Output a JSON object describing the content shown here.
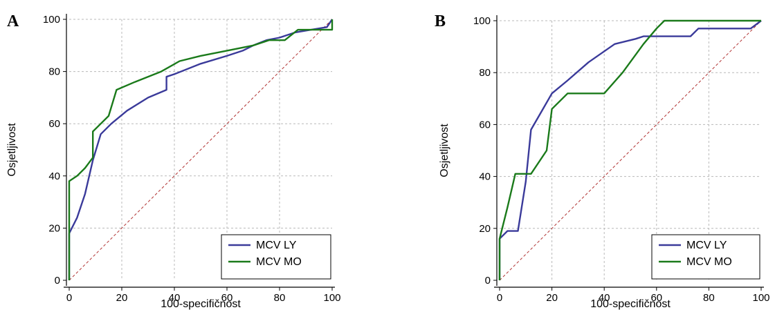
{
  "colors": {
    "MCV LY": "#3a3a9a",
    "MCV MO": "#1a7a1a",
    "reference": "#b03030",
    "grid": "#b8b8b8"
  },
  "chart_data": [
    {
      "type": "line",
      "panel_label": "A",
      "xlabel": "100-specifičnost",
      "ylabel": "Osjetljivost",
      "xlim": [
        0,
        100
      ],
      "ylim": [
        0,
        100
      ],
      "xticks": [
        "0",
        "20",
        "40",
        "60",
        "80",
        "100"
      ],
      "yticks": [
        "0",
        "20",
        "40",
        "60",
        "80",
        "100"
      ],
      "grid": true,
      "legend_position": "bottom-right",
      "reference_line": [
        [
          0,
          0
        ],
        [
          100,
          100
        ]
      ],
      "series": [
        {
          "name": "MCV LY",
          "points": [
            [
              0,
              0
            ],
            [
              0,
              18
            ],
            [
              3,
              24
            ],
            [
              6,
              33
            ],
            [
              9,
              46
            ],
            [
              12,
              56
            ],
            [
              16,
              60
            ],
            [
              22,
              65
            ],
            [
              30,
              70
            ],
            [
              37,
              73
            ],
            [
              37,
              78
            ],
            [
              40,
              79
            ],
            [
              50,
              83
            ],
            [
              60,
              86
            ],
            [
              66,
              88
            ],
            [
              70,
              90
            ],
            [
              75,
              92
            ],
            [
              80,
              93
            ],
            [
              86,
              95
            ],
            [
              92,
              96
            ],
            [
              98,
              97
            ],
            [
              100,
              100
            ]
          ]
        },
        {
          "name": "MCV MO",
          "points": [
            [
              0,
              0
            ],
            [
              0,
              38
            ],
            [
              3,
              40
            ],
            [
              6,
              43
            ],
            [
              9,
              47
            ],
            [
              9,
              57
            ],
            [
              12,
              60
            ],
            [
              15,
              63
            ],
            [
              18,
              73
            ],
            [
              25,
              76
            ],
            [
              35,
              80
            ],
            [
              42,
              84
            ],
            [
              50,
              86
            ],
            [
              60,
              88
            ],
            [
              70,
              90
            ],
            [
              76,
              92
            ],
            [
              82,
              92
            ],
            [
              87,
              96
            ],
            [
              92,
              96
            ],
            [
              100,
              96
            ],
            [
              100,
              100
            ]
          ]
        }
      ]
    },
    {
      "type": "line",
      "panel_label": "B",
      "xlabel": "100-specifičnost",
      "ylabel": "Osjetljivost",
      "xlim": [
        0,
        100
      ],
      "ylim": [
        0,
        100
      ],
      "xticks": [
        "0",
        "20",
        "40",
        "60",
        "80",
        "100"
      ],
      "yticks": [
        "0",
        "20",
        "40",
        "60",
        "80",
        "100"
      ],
      "grid": true,
      "legend_position": "bottom-right",
      "reference_line": [
        [
          0,
          0
        ],
        [
          100,
          100
        ]
      ],
      "series": [
        {
          "name": "MCV LY",
          "points": [
            [
              0,
              0
            ],
            [
              0,
              16
            ],
            [
              3,
              19
            ],
            [
              7,
              19
            ],
            [
              10,
              38
            ],
            [
              12,
              58
            ],
            [
              16,
              65
            ],
            [
              20,
              72
            ],
            [
              26,
              77
            ],
            [
              34,
              84
            ],
            [
              44,
              91
            ],
            [
              52,
              93
            ],
            [
              55,
              94
            ],
            [
              73,
              94
            ],
            [
              76,
              97
            ],
            [
              96,
              97
            ],
            [
              100,
              100
            ]
          ]
        },
        {
          "name": "MCV MO",
          "points": [
            [
              0,
              0
            ],
            [
              0,
              16
            ],
            [
              3,
              28
            ],
            [
              6,
              41
            ],
            [
              12,
              41
            ],
            [
              18,
              50
            ],
            [
              20,
              66
            ],
            [
              26,
              72
            ],
            [
              40,
              72
            ],
            [
              47,
              80
            ],
            [
              55,
              91
            ],
            [
              60,
              97
            ],
            [
              63,
              100
            ],
            [
              100,
              100
            ]
          ]
        }
      ]
    }
  ]
}
